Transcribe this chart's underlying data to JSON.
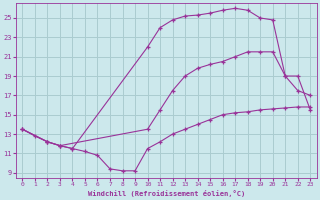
{
  "background_color": "#cce8ec",
  "grid_color": "#aaccd0",
  "line_color": "#993399",
  "marker_color": "#993399",
  "xlabel": "Windchill (Refroidissement éolien,°C)",
  "xlabel_color": "#993399",
  "tick_color": "#993399",
  "xlim": [
    -0.5,
    23.5
  ],
  "ylim": [
    8.5,
    26.5
  ],
  "yticks": [
    9,
    11,
    13,
    15,
    17,
    19,
    21,
    23,
    25
  ],
  "xticks": [
    0,
    1,
    2,
    3,
    4,
    5,
    6,
    7,
    8,
    9,
    10,
    11,
    12,
    13,
    14,
    15,
    16,
    17,
    18,
    19,
    20,
    21,
    22,
    23
  ],
  "lines": [
    {
      "x": [
        0,
        1,
        2,
        3,
        4,
        5,
        6,
        7,
        8,
        9,
        10,
        11,
        12,
        13,
        14,
        15,
        16,
        17,
        18,
        19,
        20,
        21,
        22,
        23
      ],
      "y": [
        13.5,
        12.8,
        12.2,
        11.8,
        11.5,
        11.2,
        10.8,
        9.4,
        9.2,
        9.2,
        11.5,
        12.2,
        13.0,
        13.5,
        14.0,
        14.5,
        15.0,
        15.2,
        15.3,
        15.5,
        15.6,
        15.7,
        15.8,
        15.8
      ]
    },
    {
      "x": [
        0,
        2,
        3,
        10,
        11,
        12,
        13,
        14,
        15,
        16,
        17,
        18,
        19,
        20,
        21,
        22,
        23
      ],
      "y": [
        13.5,
        12.2,
        11.8,
        13.5,
        15.5,
        17.5,
        19.0,
        19.8,
        20.2,
        20.5,
        21.0,
        21.5,
        21.5,
        21.5,
        19.0,
        19.0,
        15.5
      ]
    },
    {
      "x": [
        0,
        2,
        3,
        4,
        10,
        11,
        12,
        13,
        14,
        15,
        16,
        17,
        18,
        19,
        20,
        21,
        22,
        23
      ],
      "y": [
        13.5,
        12.2,
        11.8,
        11.5,
        22.0,
        24.0,
        24.8,
        25.2,
        25.3,
        25.5,
        25.8,
        26.0,
        25.8,
        25.0,
        24.8,
        19.0,
        17.5,
        17.0
      ]
    }
  ]
}
